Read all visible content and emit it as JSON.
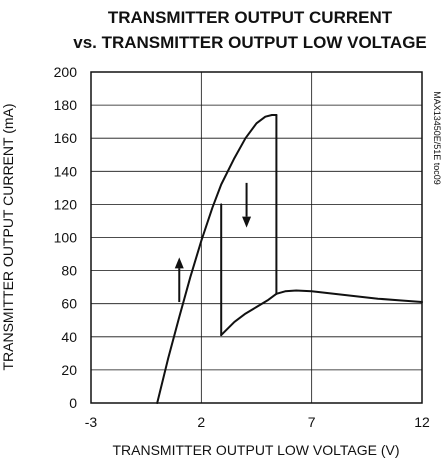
{
  "chart_data": {
    "type": "line",
    "title": [
      "TRANSMITTER OUTPUT CURRENT",
      "vs. TRANSMITTER OUTPUT LOW VOLTAGE"
    ],
    "xlabel": "TRANSMITTER OUTPUT LOW VOLTAGE (V)",
    "ylabel": "TRANSMITTER OUTPUT CURRENT (mA)",
    "xlim": [
      -3,
      12
    ],
    "ylim": [
      0,
      200
    ],
    "xticks": [
      -3,
      2,
      7,
      12
    ],
    "yticks": [
      0,
      20,
      40,
      60,
      80,
      100,
      120,
      140,
      160,
      180,
      200
    ],
    "xtick_labels": [
      "-3",
      "2",
      "7",
      "12"
    ],
    "ytick_labels": [
      "0",
      "20",
      "40",
      "60",
      "80",
      "100",
      "120",
      "140",
      "160",
      "180",
      "200"
    ],
    "grid": true,
    "code": "MAX13450E/51E toc09",
    "series": [
      {
        "x": [
          0.0,
          0.5,
          1.0,
          1.5,
          2.0,
          2.5,
          2.9,
          3.5,
          4.0,
          4.5,
          4.9,
          5.2,
          5.4
        ],
        "values": [
          0,
          27,
          52,
          76,
          98,
          118,
          132,
          148,
          160,
          169,
          173,
          174,
          174
        ]
      },
      {
        "x": [
          5.4,
          5.4
        ],
        "values": [
          174,
          66
        ]
      },
      {
        "x": [
          5.4,
          5.8,
          6.3,
          7.0,
          8.0,
          9.0,
          10.0,
          11.0,
          12.0
        ],
        "values": [
          66,
          67.5,
          68,
          67.5,
          66,
          64.5,
          63,
          62,
          61
        ]
      },
      {
        "x": [
          2.9,
          2.9
        ],
        "values": [
          120,
          41
        ]
      },
      {
        "x": [
          2.9,
          3.5,
          4.0,
          4.5,
          5.0,
          5.4
        ],
        "values": [
          41,
          49,
          54,
          58,
          62,
          66
        ]
      }
    ],
    "annotations": [
      {
        "type": "arrow",
        "direction": "up",
        "x": 1.0,
        "y_from": 61,
        "y_to": 88
      },
      {
        "type": "arrow",
        "direction": "down",
        "x": 4.05,
        "y_from": 133,
        "y_to": 106
      }
    ]
  }
}
